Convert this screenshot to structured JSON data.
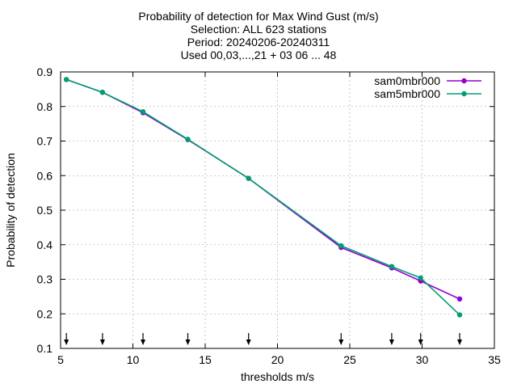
{
  "chart_data": {
    "type": "line",
    "title_lines": [
      "Probability of detection  for Max Wind Gust (m/s)",
      "Selection: ALL    623 stations",
      "Period: 20240206-20240311",
      "Used 00,03,...,21 + 03 06 ... 48"
    ],
    "xlabel": "thresholds m/s",
    "ylabel": "Probability of detection",
    "xlim": [
      5,
      35
    ],
    "ylim": [
      0.1,
      0.9
    ],
    "xticks": [
      5,
      10,
      15,
      20,
      25,
      30,
      35
    ],
    "yticks": [
      0.1,
      0.2,
      0.3,
      0.4,
      0.5,
      0.6,
      0.7,
      0.8,
      0.9
    ],
    "grid": true,
    "legend_position": "top-right",
    "series": [
      {
        "name": "sam0mbr000",
        "color": "#9400d3",
        "x": [
          5.4,
          7.9,
          10.7,
          13.8,
          18.0,
          24.4,
          27.9,
          29.9,
          32.6
        ],
        "y": [
          0.878,
          0.841,
          0.782,
          0.704,
          0.592,
          0.392,
          0.333,
          0.295,
          0.243
        ]
      },
      {
        "name": "sam5mbr000",
        "color": "#009e73",
        "x": [
          5.4,
          7.9,
          10.7,
          13.8,
          18.0,
          24.4,
          27.9,
          29.9,
          32.6
        ],
        "y": [
          0.878,
          0.841,
          0.785,
          0.705,
          0.592,
          0.397,
          0.337,
          0.304,
          0.197
        ]
      }
    ],
    "arrow_marks_x": [
      5.4,
      7.9,
      10.7,
      13.8,
      18.0,
      24.4,
      27.9,
      29.9,
      32.6
    ]
  }
}
